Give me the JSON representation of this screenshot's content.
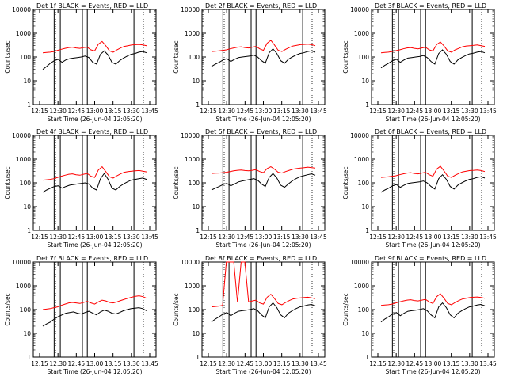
{
  "chart_data": [
    {
      "type": "line",
      "title": "Det 1f BLACK = Events, RED = LLD",
      "ylabel": "Counts/sec",
      "xlabel": "Start Time (26-Jun-04 12:05:20)",
      "xticks": [
        "12:15",
        "12:30",
        "12:45",
        "13:00",
        "13:15",
        "13:30",
        "13:45"
      ],
      "yticks": [
        "1",
        "10",
        "100",
        "1000",
        "10000"
      ],
      "ylim": [
        1,
        10000
      ],
      "yscale": "log",
      "series": [
        {
          "name": "Events",
          "color": "#000000",
          "values": [
            30,
            40,
            55,
            70,
            80,
            60,
            75,
            85,
            90,
            95,
            100,
            110,
            95,
            60,
            50,
            130,
            180,
            120,
            60,
            50,
            70,
            90,
            110,
            130,
            140,
            160,
            170,
            150
          ]
        },
        {
          "name": "LLD",
          "color": "#ff0000",
          "values": [
            150,
            155,
            160,
            170,
            190,
            210,
            230,
            250,
            260,
            240,
            230,
            250,
            260,
            200,
            180,
            350,
            450,
            300,
            180,
            160,
            200,
            240,
            280,
            300,
            320,
            330,
            340,
            320,
            300
          ]
        }
      ]
    },
    {
      "type": "line",
      "title": "Det 2f BLACK = Events, RED = LLD",
      "ylabel": "Counts/sec",
      "xlabel": "Start Time (26-Jun-04 12:05:20)",
      "xticks": [
        "12:15",
        "12:30",
        "12:45",
        "13:00",
        "13:15",
        "13:30",
        "13:45"
      ],
      "yticks": [
        "1",
        "10",
        "100",
        "1000",
        "10000"
      ],
      "ylim": [
        1,
        10000
      ],
      "yscale": "log",
      "series": [
        {
          "name": "Events",
          "color": "#000000",
          "values": [
            40,
            50,
            60,
            75,
            85,
            65,
            80,
            95,
            100,
            105,
            110,
            120,
            100,
            70,
            55,
            150,
            220,
            140,
            70,
            55,
            80,
            100,
            120,
            140,
            150,
            170,
            180,
            160
          ]
        },
        {
          "name": "LLD",
          "color": "#ff0000",
          "values": [
            170,
            175,
            180,
            190,
            200,
            220,
            240,
            260,
            270,
            250,
            240,
            260,
            280,
            220,
            190,
            380,
            500,
            320,
            190,
            170,
            210,
            250,
            290,
            310,
            330,
            340,
            350,
            330,
            300
          ]
        }
      ]
    },
    {
      "type": "line",
      "title": "Det 3f BLACK = Events, RED = LLD",
      "ylabel": "Counts/sec",
      "xlabel": "Start Time (26-Jun-04 12:05:20)",
      "xticks": [
        "12:15",
        "12:30",
        "12:45",
        "13:00",
        "13:15",
        "13:30",
        "13:45"
      ],
      "yticks": [
        "1",
        "10",
        "100",
        "1000",
        "10000"
      ],
      "ylim": [
        1,
        10000
      ],
      "yscale": "log",
      "series": [
        {
          "name": "Events",
          "color": "#000000",
          "values": [
            35,
            45,
            55,
            70,
            80,
            60,
            75,
            90,
            95,
            100,
            105,
            115,
            95,
            65,
            50,
            140,
            200,
            130,
            65,
            50,
            75,
            95,
            115,
            135,
            145,
            160,
            170,
            150
          ]
        },
        {
          "name": "LLD",
          "color": "#ff0000",
          "values": [
            150,
            155,
            160,
            170,
            185,
            200,
            220,
            240,
            250,
            230,
            220,
            240,
            260,
            200,
            180,
            330,
            430,
            290,
            180,
            160,
            200,
            230,
            270,
            290,
            300,
            310,
            320,
            300,
            280
          ]
        }
      ]
    },
    {
      "type": "line",
      "title": "Det 4f BLACK = Events, RED = LLD",
      "ylabel": "Counts/sec",
      "xlabel": "Start Time (26-Jun-04 12:05:20)",
      "xticks": [
        "12:15",
        "12:30",
        "12:45",
        "13:00",
        "13:15",
        "13:30",
        "13:45"
      ],
      "yticks": [
        "1",
        "10",
        "100",
        "1000",
        "10000"
      ],
      "ylim": [
        1,
        10000
      ],
      "yscale": "log",
      "series": [
        {
          "name": "Events",
          "color": "#000000",
          "values": [
            40,
            50,
            60,
            70,
            75,
            60,
            70,
            80,
            85,
            90,
            95,
            100,
            90,
            60,
            50,
            150,
            250,
            140,
            60,
            50,
            70,
            90,
            110,
            130,
            140,
            150,
            160,
            140
          ]
        },
        {
          "name": "LLD",
          "color": "#ff0000",
          "values": [
            130,
            135,
            140,
            150,
            170,
            190,
            210,
            230,
            240,
            220,
            210,
            230,
            250,
            190,
            170,
            350,
            480,
            300,
            180,
            160,
            200,
            240,
            280,
            300,
            310,
            320,
            330,
            310,
            290
          ]
        }
      ]
    },
    {
      "type": "line",
      "title": "Det 5f BLACK = Events, RED = LLD",
      "ylabel": "Counts/sec",
      "xlabel": "Start Time (26-Jun-04 12:05:20)",
      "xticks": [
        "12:15",
        "12:30",
        "12:45",
        "13:00",
        "13:15",
        "13:30",
        "13:45"
      ],
      "yticks": [
        "1",
        "10",
        "100",
        "1000",
        "10000"
      ],
      "ylim": [
        1,
        10000
      ],
      "yscale": "log",
      "series": [
        {
          "name": "Events",
          "color": "#000000",
          "values": [
            50,
            60,
            70,
            85,
            95,
            75,
            90,
            110,
            120,
            130,
            140,
            150,
            130,
            90,
            70,
            170,
            250,
            160,
            80,
            65,
            90,
            120,
            150,
            180,
            200,
            220,
            240,
            210
          ]
        },
        {
          "name": "LLD",
          "color": "#ff0000",
          "values": [
            250,
            255,
            260,
            270,
            280,
            300,
            320,
            340,
            350,
            330,
            320,
            340,
            360,
            300,
            270,
            400,
            480,
            380,
            280,
            260,
            300,
            340,
            380,
            400,
            420,
            440,
            460,
            440,
            420
          ]
        }
      ]
    },
    {
      "type": "line",
      "title": "Det 6f BLACK = Events, RED = LLD",
      "ylabel": "Counts/sec",
      "xlabel": "Start Time (26-Jun-04 12:05:20)",
      "xticks": [
        "12:15",
        "12:30",
        "12:45",
        "13:00",
        "13:15",
        "13:30",
        "13:45"
      ],
      "yticks": [
        "1",
        "10",
        "100",
        "1000",
        "10000"
      ],
      "ylim": [
        1,
        10000
      ],
      "yscale": "log",
      "series": [
        {
          "name": "Events",
          "color": "#000000",
          "values": [
            40,
            50,
            60,
            75,
            85,
            65,
            80,
            95,
            100,
            105,
            110,
            120,
            100,
            70,
            55,
            150,
            220,
            140,
            70,
            55,
            80,
            100,
            120,
            140,
            150,
            170,
            180,
            160
          ]
        },
        {
          "name": "LLD",
          "color": "#ff0000",
          "values": [
            170,
            175,
            180,
            190,
            200,
            220,
            240,
            260,
            270,
            250,
            240,
            260,
            280,
            220,
            190,
            380,
            500,
            320,
            190,
            170,
            210,
            250,
            290,
            310,
            330,
            340,
            350,
            330,
            300
          ]
        }
      ]
    },
    {
      "type": "line",
      "title": "Det 7f BLACK = Events, RED = LLD",
      "ylabel": "Counts/sec",
      "xlabel": "Start Time (26-Jun-04 12:05:20)",
      "xticks": [
        "12:15",
        "12:30",
        "12:45",
        "13:00",
        "13:15",
        "13:30",
        "13:45"
      ],
      "yticks": [
        "1",
        "10",
        "100",
        "1000",
        "10000"
      ],
      "ylim": [
        1,
        10000
      ],
      "yscale": "log",
      "series": [
        {
          "name": "Events",
          "color": "#000000",
          "values": [
            20,
            25,
            30,
            40,
            50,
            60,
            70,
            75,
            80,
            70,
            65,
            75,
            85,
            70,
            60,
            80,
            95,
            85,
            70,
            65,
            75,
            90,
            100,
            110,
            115,
            120,
            110,
            90
          ]
        },
        {
          "name": "LLD",
          "color": "#ff0000",
          "values": [
            100,
            105,
            110,
            120,
            130,
            150,
            170,
            190,
            200,
            190,
            180,
            200,
            220,
            190,
            170,
            210,
            250,
            230,
            200,
            190,
            210,
            240,
            270,
            300,
            330,
            360,
            380,
            350,
            300
          ]
        }
      ]
    },
    {
      "type": "line",
      "title": "Det 8f BLACK = Events, RED = LLD",
      "ylabel": "Counts/sec",
      "xlabel": "Start Time (26-Jun-04 12:05:20)",
      "xticks": [
        "12:15",
        "12:30",
        "12:45",
        "13:00",
        "13:15",
        "13:30",
        "13:45"
      ],
      "yticks": [
        "1",
        "10",
        "100",
        "1000",
        "10000"
      ],
      "ylim": [
        1,
        10000
      ],
      "yscale": "log",
      "series": [
        {
          "name": "Events",
          "color": "#000000",
          "values": [
            30,
            40,
            50,
            65,
            75,
            55,
            70,
            85,
            90,
            95,
            100,
            110,
            90,
            60,
            45,
            130,
            190,
            120,
            60,
            45,
            70,
            90,
            110,
            130,
            140,
            155,
            165,
            145
          ]
        },
        {
          "name": "LLD",
          "color": "#ff0000",
          "values": [
            130,
            135,
            140,
            150,
            10000,
            10000,
            10000,
            200,
            10000,
            10000,
            210,
            230,
            250,
            190,
            170,
            330,
            440,
            290,
            180,
            160,
            200,
            240,
            280,
            300,
            310,
            320,
            330,
            310,
            290
          ]
        }
      ]
    },
    {
      "type": "line",
      "title": "Det 9f BLACK = Events, RED = LLD",
      "ylabel": "Counts/sec",
      "xlabel": "Start Time (26-Jun-04 12:05:20)",
      "xticks": [
        "12:15",
        "12:30",
        "12:45",
        "13:00",
        "13:15",
        "13:30",
        "13:45"
      ],
      "yticks": [
        "1",
        "10",
        "100",
        "1000",
        "10000"
      ],
      "ylim": [
        1,
        10000
      ],
      "yscale": "log",
      "series": [
        {
          "name": "Events",
          "color": "#000000",
          "values": [
            30,
            40,
            50,
            65,
            75,
            55,
            70,
            85,
            90,
            95,
            100,
            110,
            90,
            60,
            45,
            130,
            190,
            120,
            60,
            45,
            70,
            90,
            110,
            130,
            140,
            155,
            165,
            145
          ]
        },
        {
          "name": "LLD",
          "color": "#ff0000",
          "values": [
            150,
            155,
            160,
            170,
            190,
            210,
            230,
            250,
            260,
            240,
            230,
            250,
            270,
            210,
            180,
            350,
            460,
            300,
            180,
            160,
            200,
            240,
            280,
            300,
            320,
            330,
            340,
            320,
            300
          ]
        }
      ]
    }
  ]
}
